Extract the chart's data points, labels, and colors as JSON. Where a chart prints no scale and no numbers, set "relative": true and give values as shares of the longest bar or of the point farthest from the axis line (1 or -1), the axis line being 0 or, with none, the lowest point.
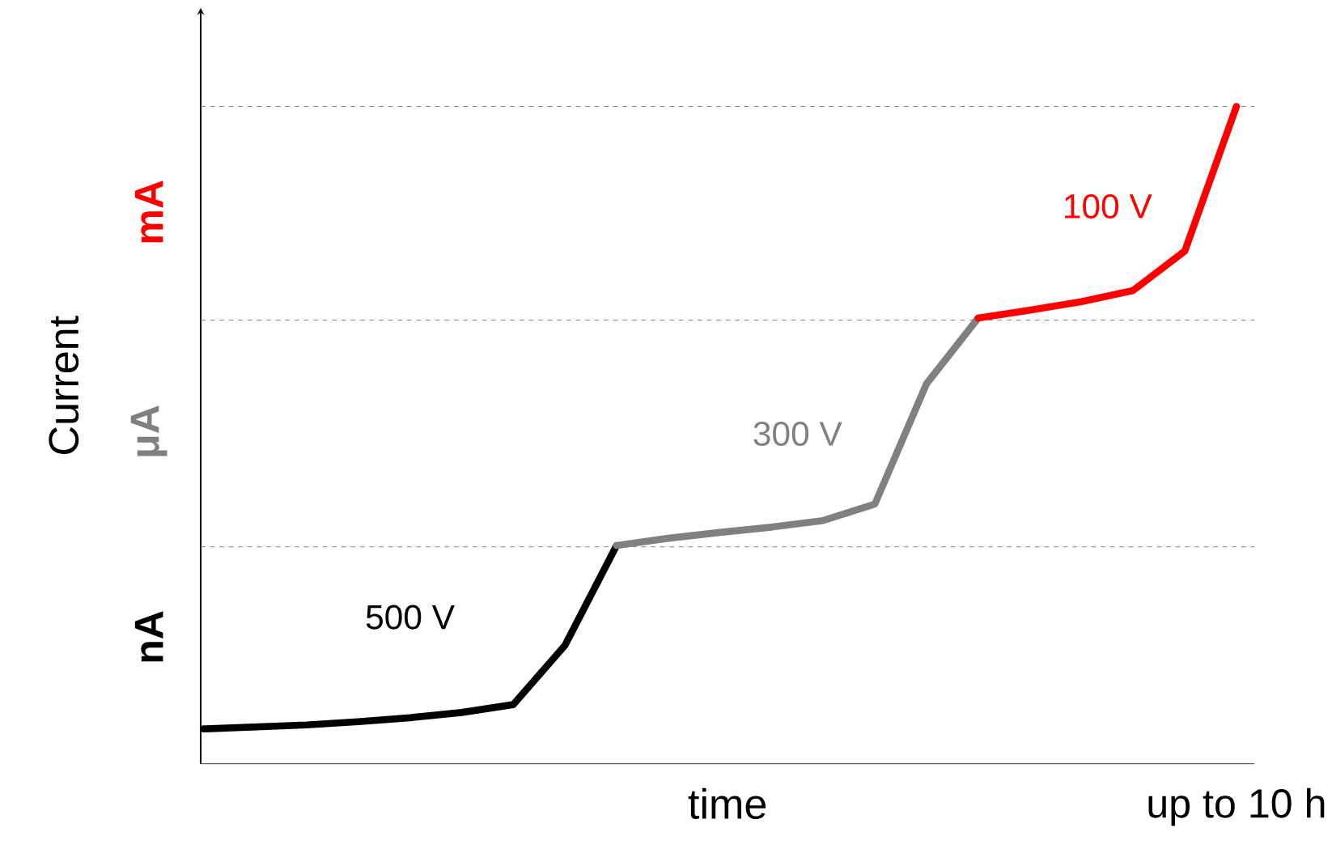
{
  "chart_data": {
    "type": "line",
    "relative": true,
    "xlabel": "time",
    "ylabel": "Current",
    "annotations": [
      "up to 10 h",
      "nA",
      "μA",
      "mA"
    ],
    "categories": [
      null,
      null,
      null,
      null,
      null,
      null,
      null,
      null,
      null,
      null,
      null,
      null,
      null,
      null,
      null,
      null,
      null,
      null,
      null,
      null,
      null
    ],
    "series": [
      {
        "name": "500 V",
        "color": "#000000",
        "values": [
          0.053,
          0.056,
          0.059,
          0.064,
          0.07,
          0.078,
          0.09,
          0.18,
          0.332,
          null,
          null,
          null,
          null,
          null,
          null,
          null,
          null,
          null,
          null,
          null,
          null
        ]
      },
      {
        "name": "300 V",
        "color": "#808080",
        "values": [
          null,
          null,
          null,
          null,
          null,
          null,
          null,
          null,
          0.332,
          0.343,
          0.352,
          0.36,
          0.37,
          0.395,
          0.578,
          0.678,
          null,
          null,
          null,
          null,
          null
        ]
      },
      {
        "name": "100 V",
        "color": "#ff0000",
        "values": [
          null,
          null,
          null,
          null,
          null,
          null,
          null,
          null,
          null,
          null,
          null,
          null,
          null,
          null,
          null,
          0.678,
          0.69,
          0.703,
          0.72,
          0.78,
          1.0
        ]
      }
    ],
    "ref_lines": [
      {
        "axis": "y",
        "value": 0.33,
        "color": "#808080",
        "line_style": "dashed"
      },
      {
        "axis": "y",
        "value": 0.675,
        "color": "#808080",
        "line_style": "dashed"
      },
      {
        "axis": "y",
        "value": 1.0,
        "color": "#808080",
        "line_style": "dashed"
      }
    ],
    "marker": "none",
    "line_style": "solid"
  }
}
